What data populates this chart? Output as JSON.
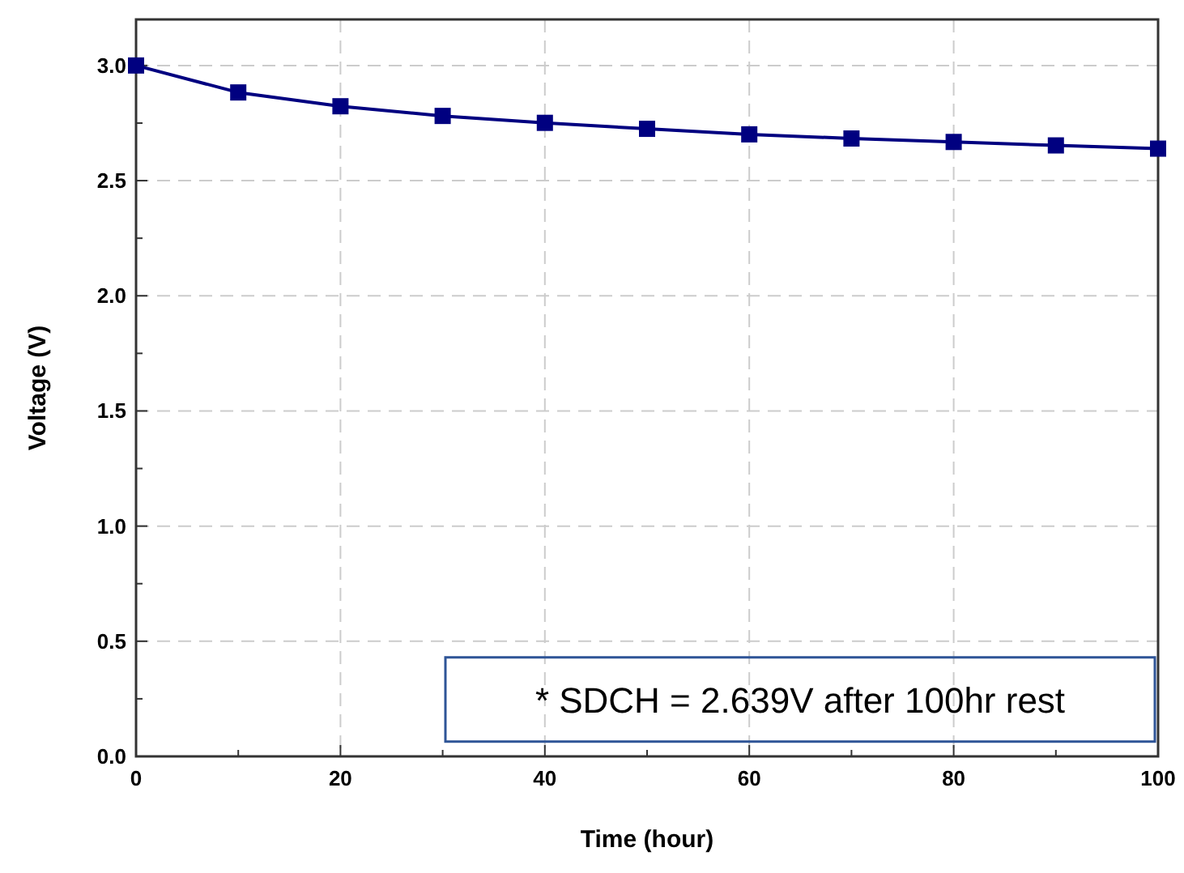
{
  "chart_data": {
    "type": "line",
    "xlabel": "Time (hour)",
    "ylabel": "Voltage (V)",
    "x": [
      0,
      10,
      20,
      30,
      40,
      50,
      60,
      70,
      80,
      90,
      100
    ],
    "series": [
      {
        "color": "#000080",
        "values": [
          3.0,
          2.883,
          2.823,
          2.781,
          2.751,
          2.725,
          2.701,
          2.683,
          2.668,
          2.653,
          2.639
        ]
      }
    ],
    "xlim": [
      0,
      100
    ],
    "ylim": [
      0,
      3.2
    ],
    "xticks": [
      0,
      {
        "value": 10,
        "label": null
      },
      20,
      {
        "value": 30,
        "label": null
      },
      40,
      {
        "value": 50,
        "label": null
      },
      60,
      {
        "value": 70,
        "label": null
      },
      80,
      {
        "value": 90,
        "label": null
      },
      100
    ],
    "yticks": [
      {
        "value": 0,
        "label": "0.0"
      },
      {
        "value": 0.25,
        "label": null
      },
      0.5,
      {
        "value": 0.75,
        "label": null
      },
      {
        "value": 1,
        "label": "1.0"
      },
      {
        "value": 1.25,
        "label": null
      },
      1.5,
      {
        "value": 1.75,
        "label": null
      },
      {
        "value": 2,
        "label": "2.0"
      },
      {
        "value": 2.25,
        "label": null
      },
      2.5,
      {
        "value": 2.75,
        "label": null
      },
      {
        "value": 3,
        "label": "3.0"
      }
    ],
    "grid": true,
    "marker": "square",
    "line_style": "solid",
    "annotations": [
      "* SDCH = 2.639V after 100hr rest"
    ]
  }
}
